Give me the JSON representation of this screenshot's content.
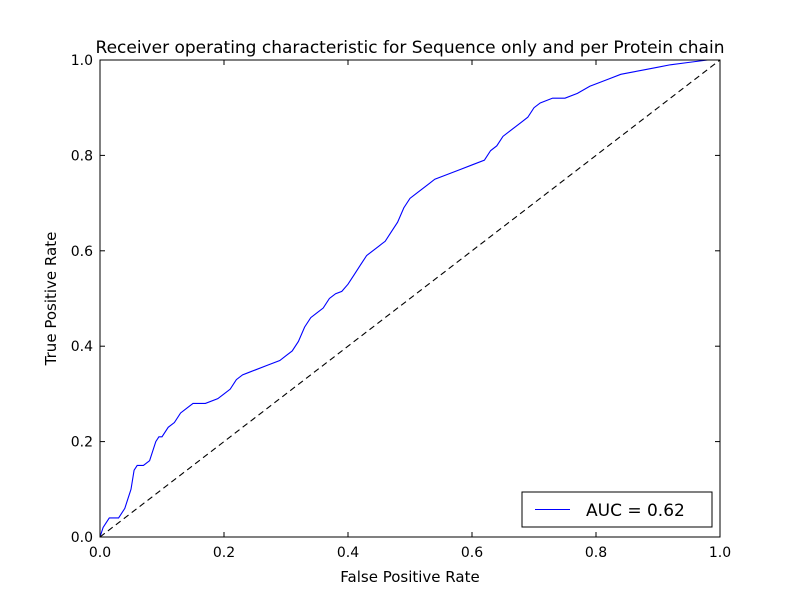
{
  "chart_data": {
    "type": "line",
    "title": "Receiver operating characteristic for Sequence only and per Protein chain",
    "xlabel": "False Positive Rate",
    "ylabel": "True Positive Rate",
    "xlim": [
      0.0,
      1.0
    ],
    "ylim": [
      0.0,
      1.0
    ],
    "xticks": [
      0.0,
      0.2,
      0.4,
      0.6,
      0.8,
      1.0
    ],
    "yticks": [
      0.0,
      0.2,
      0.4,
      0.6,
      0.8,
      1.0
    ],
    "xtick_labels": [
      "0.0",
      "0.2",
      "0.4",
      "0.6",
      "0.8",
      "1.0"
    ],
    "ytick_labels": [
      "0.0",
      "0.2",
      "0.4",
      "0.6",
      "0.8",
      "1.0"
    ],
    "grid": false,
    "legend_position": "bottom-right",
    "series": [
      {
        "name": "AUC = 0.62",
        "color": "#0000ff",
        "style": "solid",
        "x": [
          0.0,
          0.005,
          0.01,
          0.015,
          0.02,
          0.03,
          0.04,
          0.045,
          0.05,
          0.055,
          0.06,
          0.07,
          0.08,
          0.09,
          0.095,
          0.1,
          0.11,
          0.12,
          0.13,
          0.14,
          0.15,
          0.17,
          0.19,
          0.2,
          0.21,
          0.22,
          0.23,
          0.24,
          0.25,
          0.27,
          0.29,
          0.3,
          0.31,
          0.32,
          0.33,
          0.34,
          0.35,
          0.36,
          0.37,
          0.38,
          0.39,
          0.4,
          0.41,
          0.42,
          0.43,
          0.44,
          0.45,
          0.46,
          0.47,
          0.48,
          0.49,
          0.5,
          0.51,
          0.52,
          0.53,
          0.54,
          0.56,
          0.58,
          0.6,
          0.62,
          0.63,
          0.64,
          0.65,
          0.66,
          0.67,
          0.68,
          0.69,
          0.7,
          0.71,
          0.73,
          0.75,
          0.77,
          0.79,
          0.8,
          0.82,
          0.84,
          0.86,
          0.88,
          0.9,
          0.92,
          0.95,
          0.98,
          1.0
        ],
        "y": [
          0.0,
          0.02,
          0.03,
          0.04,
          0.04,
          0.04,
          0.06,
          0.08,
          0.1,
          0.14,
          0.15,
          0.15,
          0.16,
          0.2,
          0.21,
          0.21,
          0.23,
          0.24,
          0.26,
          0.27,
          0.28,
          0.28,
          0.29,
          0.3,
          0.31,
          0.33,
          0.34,
          0.345,
          0.35,
          0.36,
          0.37,
          0.38,
          0.39,
          0.41,
          0.44,
          0.46,
          0.47,
          0.48,
          0.5,
          0.51,
          0.515,
          0.53,
          0.55,
          0.57,
          0.59,
          0.6,
          0.61,
          0.62,
          0.64,
          0.66,
          0.69,
          0.71,
          0.72,
          0.73,
          0.74,
          0.75,
          0.76,
          0.77,
          0.78,
          0.79,
          0.81,
          0.82,
          0.84,
          0.85,
          0.86,
          0.87,
          0.88,
          0.9,
          0.91,
          0.92,
          0.92,
          0.93,
          0.945,
          0.95,
          0.96,
          0.97,
          0.975,
          0.98,
          0.985,
          0.99,
          0.995,
          1.0,
          1.0
        ]
      },
      {
        "name": "",
        "color": "#000000",
        "style": "dashed",
        "x": [
          0.0,
          1.0
        ],
        "y": [
          0.0,
          1.0
        ]
      }
    ],
    "legend": [
      {
        "label": "AUC = 0.62",
        "color": "#0000ff"
      }
    ]
  }
}
